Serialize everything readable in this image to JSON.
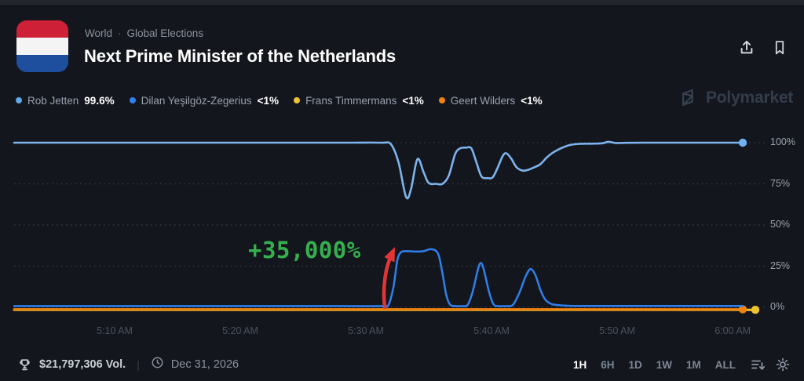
{
  "header": {
    "breadcrumb": [
      "World",
      "Global Elections"
    ],
    "separator": "·",
    "title": "Next Prime Minister of the Netherlands"
  },
  "legend": [
    {
      "name": "Rob Jetten",
      "value": "99.6%",
      "color": "#5fa8ec"
    },
    {
      "name": "Dilan Yeşilgöz-Zegerius",
      "value": "<1%",
      "color": "#2f80ed"
    },
    {
      "name": "Frans Timmermans",
      "value": "<1%",
      "color": "#eec330"
    },
    {
      "name": "Geert Wilders",
      "value": "<1%",
      "color": "#f0820f"
    }
  ],
  "watermark": {
    "text": "Polymarket"
  },
  "chart_data": {
    "type": "line",
    "title": "",
    "xlabel": "",
    "ylabel": "",
    "ylim": [
      0,
      100
    ],
    "grid": "dotted-horizontal",
    "legend_position": "top",
    "x_axis": {
      "unit": "minutes after 5:00 AM",
      "ticks": [
        {
          "label": "5:10 AM",
          "t": 10
        },
        {
          "label": "5:20 AM",
          "t": 20
        },
        {
          "label": "5:30 AM",
          "t": 30
        },
        {
          "label": "5:40 AM",
          "t": 40
        },
        {
          "label": "5:50 AM",
          "t": 50
        },
        {
          "label": "6:00 AM",
          "t": 60
        }
      ]
    },
    "y_axis": {
      "ticks": [
        {
          "label": "100%",
          "v": 100
        },
        {
          "label": "75%",
          "v": 75
        },
        {
          "label": "50%",
          "v": 50
        },
        {
          "label": "25%",
          "v": 25
        },
        {
          "label": "0%",
          "v": 0
        }
      ]
    },
    "series": [
      {
        "name": "Rob Jetten",
        "color": "#7db4ee",
        "dot_color": "#6fb0f2",
        "current": "99.6%",
        "points": [
          [
            2,
            100
          ],
          [
            10,
            100
          ],
          [
            20,
            100
          ],
          [
            28,
            100
          ],
          [
            31.2,
            100
          ],
          [
            32,
            99
          ],
          [
            32.6,
            88
          ],
          [
            33.2,
            67
          ],
          [
            33.6,
            72
          ],
          [
            34.1,
            90
          ],
          [
            34.6,
            82
          ],
          [
            35,
            75.5
          ],
          [
            35.6,
            75
          ],
          [
            36.1,
            75
          ],
          [
            36.6,
            80
          ],
          [
            37.1,
            93
          ],
          [
            37.5,
            96.5
          ],
          [
            38,
            97
          ],
          [
            38.4,
            96.5
          ],
          [
            38.8,
            88
          ],
          [
            39.2,
            79.5
          ],
          [
            39.7,
            78.5
          ],
          [
            40.1,
            79
          ],
          [
            40.5,
            85
          ],
          [
            40.9,
            92
          ],
          [
            41.2,
            93.5
          ],
          [
            41.6,
            90
          ],
          [
            42,
            85
          ],
          [
            42.5,
            83
          ],
          [
            42.9,
            83.5
          ],
          [
            43.4,
            85
          ],
          [
            43.9,
            87
          ],
          [
            44.4,
            91
          ],
          [
            44.9,
            94
          ],
          [
            45.5,
            96.5
          ],
          [
            46.2,
            98.5
          ],
          [
            47,
            99.3
          ],
          [
            48,
            99.4
          ],
          [
            48.8,
            99.6
          ],
          [
            49.3,
            100.5
          ],
          [
            49.9,
            99.8
          ],
          [
            50.6,
            99.9
          ],
          [
            52,
            100
          ],
          [
            55,
            100
          ],
          [
            60,
            100
          ]
        ]
      },
      {
        "name": "Dilan Yeşilgöz-Zegerius",
        "color": "#2f80ed",
        "current": "<1%",
        "points": [
          [
            2,
            0.3
          ],
          [
            10,
            0.3
          ],
          [
            20,
            0.3
          ],
          [
            28,
            0.3
          ],
          [
            31.3,
            0.3
          ],
          [
            31.8,
            1
          ],
          [
            32.2,
            12
          ],
          [
            32.5,
            28
          ],
          [
            32.8,
            33
          ],
          [
            33.3,
            33.6
          ],
          [
            34,
            33.4
          ],
          [
            34.6,
            33.6
          ],
          [
            35.1,
            34.8
          ],
          [
            35.5,
            34.2
          ],
          [
            35.8,
            31
          ],
          [
            36.1,
            20
          ],
          [
            36.4,
            7
          ],
          [
            36.7,
            1.2
          ],
          [
            37.1,
            0.3
          ],
          [
            37.7,
            0.3
          ],
          [
            38.1,
            1
          ],
          [
            38.5,
            9
          ],
          [
            38.9,
            22
          ],
          [
            39.15,
            26.5
          ],
          [
            39.4,
            22
          ],
          [
            39.8,
            9
          ],
          [
            40.15,
            1.5
          ],
          [
            40.5,
            0.3
          ],
          [
            41.2,
            0.3
          ],
          [
            41.7,
            1
          ],
          [
            42.2,
            8
          ],
          [
            42.7,
            18
          ],
          [
            43.1,
            22.8
          ],
          [
            43.5,
            19
          ],
          [
            43.9,
            10
          ],
          [
            44.3,
            4
          ],
          [
            44.8,
            1.5
          ],
          [
            45.4,
            0.8
          ],
          [
            46.5,
            0.4
          ],
          [
            50,
            0.4
          ],
          [
            55,
            0.4
          ],
          [
            60,
            0.4
          ]
        ]
      },
      {
        "name": "Frans Timmermans",
        "color": "#eec330",
        "current": "<1%",
        "points": [
          [
            2,
            0
          ],
          [
            30,
            0
          ],
          [
            61,
            0
          ]
        ]
      },
      {
        "name": "Geert Wilders",
        "color": "#f0820f",
        "current": "<1%",
        "points": [
          [
            2,
            0
          ],
          [
            30,
            0
          ],
          [
            60,
            0
          ]
        ]
      }
    ],
    "annotation": {
      "text": "+35,000%",
      "color": "#35b04e",
      "arrow_color": "#e23636"
    }
  },
  "footer": {
    "volume": "$21,797,306 Vol.",
    "divider": "|",
    "end_date": "Dec 31, 2026",
    "timeframes": [
      "1H",
      "6H",
      "1D",
      "1W",
      "1M",
      "ALL"
    ],
    "active_timeframe": "1H"
  }
}
